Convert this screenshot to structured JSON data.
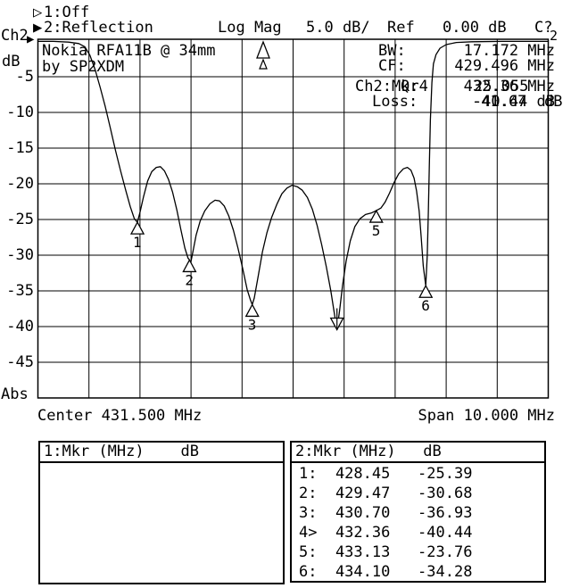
{
  "header": {
    "trace1_icon": "▷",
    "trace1_label": "1:Off",
    "trace2_icon": "▶",
    "trace2_label": "2:Reflection",
    "format": "Log Mag",
    "scale": "5.0 dB/",
    "ref_label": "Ref",
    "ref_value": "0.00 dB",
    "cal_indicator": "C?"
  },
  "y_axis": {
    "channel": "Ch2",
    "unit": "dB",
    "labels": [
      "-5",
      "-10",
      "-15",
      "-20",
      "-25",
      "-30",
      "-35",
      "-40",
      "-45"
    ],
    "mode": "Abs",
    "trace_start_icon": "▶"
  },
  "x_axis": {
    "center_text": "Center 431.500 MHz",
    "span_text": "Span 10.000 MHz"
  },
  "annotations": {
    "device_line1": "Nokia RFA11B @ 34mm",
    "device_line2": "by SP2XDM",
    "trace_number": "2"
  },
  "readout": {
    "bw_label": "BW:",
    "bw_value": "17.172 MHz",
    "cf_label": "CF:",
    "cf_value": "429.496 MHz",
    "mkr_label": "Ch2:Mkr4",
    "mkr_freq": "432.36 MHz",
    "mkr_level": "-40.44 dB",
    "q_label": "Q:",
    "q_value": "25.055",
    "loss_label": "Loss:",
    "loss_value": "-41.67",
    "loss_unit": "dB"
  },
  "marker_table_left": {
    "title": "1:Mkr (MHz)    dB",
    "rows": []
  },
  "marker_table_right": {
    "title": "2:Mkr (MHz)   dB",
    "rows": [
      "1:  428.45   -25.39",
      "2:  429.47   -30.68",
      "3:  430.70   -36.93",
      "4>  432.36   -40.44",
      "5:  433.13   -23.76",
      "6:  434.10   -34.28"
    ]
  },
  "chart_data": {
    "type": "line",
    "title": "Nokia RFA11B @ 34mm by SP2XDM — Ch2 Reflection, Log Mag 5.0 dB/div, Ref 0.00 dB",
    "xlabel": "Frequency (MHz), Center 431.500 MHz, Span 10.000 MHz",
    "ylabel": "Reflection (dB)",
    "x_range": [
      426.5,
      436.5
    ],
    "y_range": [
      -50,
      0
    ],
    "grid": {
      "xdivs": 10,
      "ydivs": 10
    },
    "bandwidth_readout": {
      "bw_mhz": 17.172,
      "cf_mhz": 429.496,
      "q": 25.055,
      "loss_db": -41.67
    },
    "markers": [
      {
        "label": "1",
        "mhz": 428.45,
        "db": -25.39,
        "active": false
      },
      {
        "label": "2",
        "mhz": 429.47,
        "db": -30.68,
        "active": false
      },
      {
        "label": "3",
        "mhz": 430.7,
        "db": -36.93,
        "active": false
      },
      {
        "label": "4",
        "mhz": 432.36,
        "db": -40.44,
        "active": true
      },
      {
        "label": "5",
        "mhz": 433.13,
        "db": -23.76,
        "active": false
      },
      {
        "label": "6",
        "mhz": 434.1,
        "db": -34.28,
        "active": false
      }
    ],
    "trace": [
      [
        426.5,
        -0.05
      ],
      [
        426.8,
        -0.05
      ],
      [
        427.1,
        -0.15
      ],
      [
        427.3,
        -0.35
      ],
      [
        427.42,
        -0.8
      ],
      [
        427.52,
        -2.0
      ],
      [
        427.62,
        -4.0
      ],
      [
        427.72,
        -6.5
      ],
      [
        427.82,
        -9.2
      ],
      [
        427.92,
        -12.2
      ],
      [
        428.02,
        -15.3
      ],
      [
        428.12,
        -18.2
      ],
      [
        428.22,
        -20.9
      ],
      [
        428.31,
        -23.2
      ],
      [
        428.39,
        -24.9
      ],
      [
        428.45,
        -25.39
      ],
      [
        428.5,
        -24.0
      ],
      [
        428.57,
        -21.8
      ],
      [
        428.65,
        -19.6
      ],
      [
        428.73,
        -18.3
      ],
      [
        428.82,
        -17.7
      ],
      [
        428.9,
        -17.6
      ],
      [
        428.98,
        -18.2
      ],
      [
        429.06,
        -19.4
      ],
      [
        429.14,
        -21.2
      ],
      [
        429.22,
        -23.6
      ],
      [
        429.3,
        -26.4
      ],
      [
        429.38,
        -29.0
      ],
      [
        429.44,
        -30.4
      ],
      [
        429.47,
        -30.68
      ],
      [
        429.49,
        -31.2
      ],
      [
        429.53,
        -29.8
      ],
      [
        429.6,
        -27.2
      ],
      [
        429.68,
        -25.2
      ],
      [
        429.77,
        -23.8
      ],
      [
        429.87,
        -22.8
      ],
      [
        429.97,
        -22.3
      ],
      [
        430.06,
        -22.4
      ],
      [
        430.15,
        -23.1
      ],
      [
        430.24,
        -24.5
      ],
      [
        430.33,
        -26.5
      ],
      [
        430.42,
        -29.0
      ],
      [
        430.51,
        -31.8
      ],
      [
        430.6,
        -34.8
      ],
      [
        430.66,
        -36.2
      ],
      [
        430.7,
        -36.93
      ],
      [
        430.74,
        -36.0
      ],
      [
        430.82,
        -32.8
      ],
      [
        430.9,
        -29.5
      ],
      [
        430.99,
        -26.8
      ],
      [
        431.08,
        -24.7
      ],
      [
        431.18,
        -22.9
      ],
      [
        431.28,
        -21.4
      ],
      [
        431.38,
        -20.6
      ],
      [
        431.48,
        -20.2
      ],
      [
        431.58,
        -20.4
      ],
      [
        431.68,
        -20.9
      ],
      [
        431.78,
        -21.9
      ],
      [
        431.88,
        -23.6
      ],
      [
        431.97,
        -25.8
      ],
      [
        432.06,
        -28.5
      ],
      [
        432.15,
        -31.6
      ],
      [
        432.24,
        -35.0
      ],
      [
        432.31,
        -38.2
      ],
      [
        432.36,
        -40.44
      ],
      [
        432.41,
        -37.8
      ],
      [
        432.47,
        -34.2
      ],
      [
        432.54,
        -30.8
      ],
      [
        432.62,
        -28.0
      ],
      [
        432.71,
        -26.0
      ],
      [
        432.81,
        -24.9
      ],
      [
        432.92,
        -24.3
      ],
      [
        433.03,
        -24.1
      ],
      [
        433.13,
        -23.76
      ],
      [
        433.22,
        -23.4
      ],
      [
        433.3,
        -22.6
      ],
      [
        433.39,
        -21.3
      ],
      [
        433.48,
        -19.8
      ],
      [
        433.57,
        -18.6
      ],
      [
        433.66,
        -17.9
      ],
      [
        433.74,
        -17.7
      ],
      [
        433.81,
        -18.1
      ],
      [
        433.87,
        -19.2
      ],
      [
        433.92,
        -21.0
      ],
      [
        433.97,
        -23.8
      ],
      [
        434.01,
        -27.5
      ],
      [
        434.05,
        -31.5
      ],
      [
        434.1,
        -34.28
      ],
      [
        434.13,
        -30.0
      ],
      [
        434.15,
        -24.0
      ],
      [
        434.17,
        -17.5
      ],
      [
        434.19,
        -11.0
      ],
      [
        434.22,
        -5.8
      ],
      [
        434.25,
        -3.2
      ],
      [
        434.3,
        -1.9
      ],
      [
        434.38,
        -1.0
      ],
      [
        434.5,
        -0.5
      ],
      [
        434.7,
        -0.2
      ],
      [
        435.0,
        -0.1
      ],
      [
        435.6,
        -0.05
      ],
      [
        436.5,
        -0.05
      ]
    ]
  }
}
